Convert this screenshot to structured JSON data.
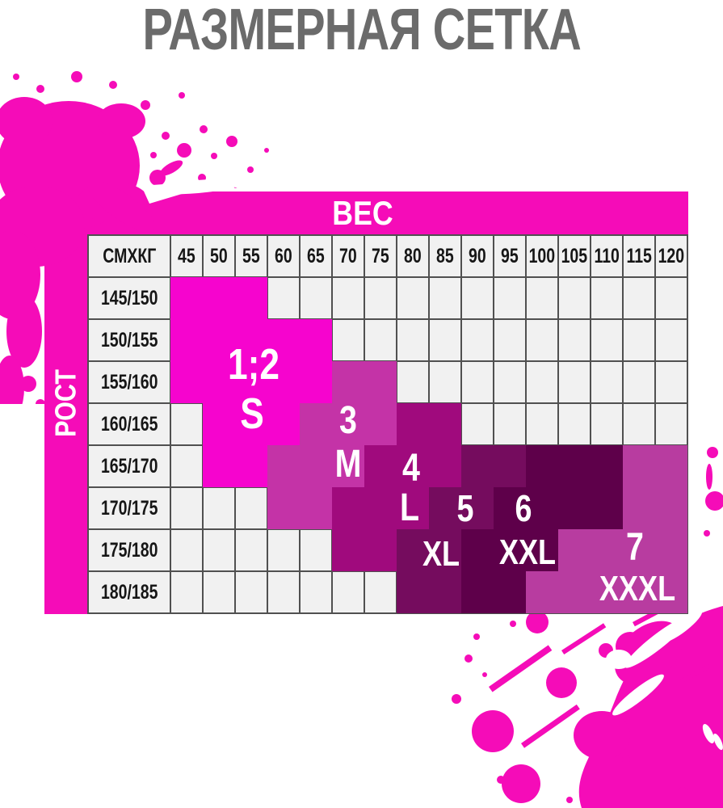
{
  "title": "РАЗМЕРНАЯ СЕТКА",
  "chart_data": {
    "type": "heatmap",
    "title": "РАЗМЕРНАЯ СЕТКА",
    "x_axis_label": "ВЕС",
    "y_axis_label": "РОСТ",
    "corner_label": "СМХКГ",
    "x_categories": [
      "45",
      "50",
      "55",
      "60",
      "65",
      "70",
      "75",
      "80",
      "85",
      "90",
      "95",
      "100",
      "105",
      "110",
      "115",
      "120"
    ],
    "y_categories": [
      "145/150",
      "150/155",
      "155/160",
      "160/165",
      "165/170",
      "170/175",
      "175/180",
      "180/185"
    ],
    "cells": [
      [
        "s",
        "s",
        "s",
        "",
        "",
        "",
        "",
        "",
        "",
        "",
        "",
        "",
        "",
        "",
        "",
        ""
      ],
      [
        "s",
        "s",
        "s",
        "s",
        "s",
        "",
        "",
        "",
        "",
        "",
        "",
        "",
        "",
        "",
        "",
        ""
      ],
      [
        "s",
        "s",
        "s",
        "s",
        "s",
        "m",
        "m",
        "",
        "",
        "",
        "",
        "",
        "",
        "",
        "",
        ""
      ],
      [
        "",
        "s",
        "s",
        "s",
        "m",
        "m",
        "m",
        "l",
        "l",
        "",
        "",
        "",
        "",
        "",
        "",
        ""
      ],
      [
        "",
        "s",
        "s",
        "m",
        "m",
        "m",
        "l",
        "l",
        "l",
        "xl",
        "xl",
        "xxl",
        "xxl",
        "xxl",
        "xxxl",
        "xxxl"
      ],
      [
        "",
        "",
        "",
        "m",
        "m",
        "l",
        "l",
        "l",
        "xl",
        "xl",
        "xxl",
        "xxl",
        "xxl",
        "xxl",
        "xxxl",
        "xxxl"
      ],
      [
        "",
        "",
        "",
        "",
        "",
        "l",
        "l",
        "xl",
        "xl",
        "xxl",
        "xxl",
        "xxl",
        "xxxl",
        "xxxl",
        "xxxl",
        "xxxl"
      ],
      [
        "",
        "",
        "",
        "",
        "",
        "",
        "",
        "xl",
        "xl",
        "xxl",
        "xxl",
        "xxxl",
        "xxxl",
        "xxxl",
        "xxxl",
        "xxxl"
      ]
    ],
    "legend": [
      {
        "region": "s",
        "label_number": "1;2",
        "label_letter": "S"
      },
      {
        "region": "m",
        "label_number": "3",
        "label_letter": "М"
      },
      {
        "region": "l",
        "label_number": "4",
        "label_letter": "L"
      },
      {
        "region": "xl",
        "label_number": "5",
        "label_letter": "XL"
      },
      {
        "region": "xxl",
        "label_number": "6",
        "label_letter": "XXL"
      },
      {
        "region": "xxxl",
        "label_number": "7",
        "label_letter": "XXXL"
      }
    ],
    "grid": "dark gridlines on empty cells only; size regions are solid blocks",
    "legend_position": "labels overlaid inside regions"
  },
  "colors": {
    "accent_pink": "#F50CB8",
    "s": "#F604CE",
    "m": "#C433A7",
    "l": "#A00A7D",
    "xl": "#750C5E",
    "xxl": "#5E004A",
    "xxxl": "#B83CA0",
    "grid_line": "#505050",
    "empty_cell": "#F1F1F1",
    "title_gray": "#6B6B6B"
  }
}
